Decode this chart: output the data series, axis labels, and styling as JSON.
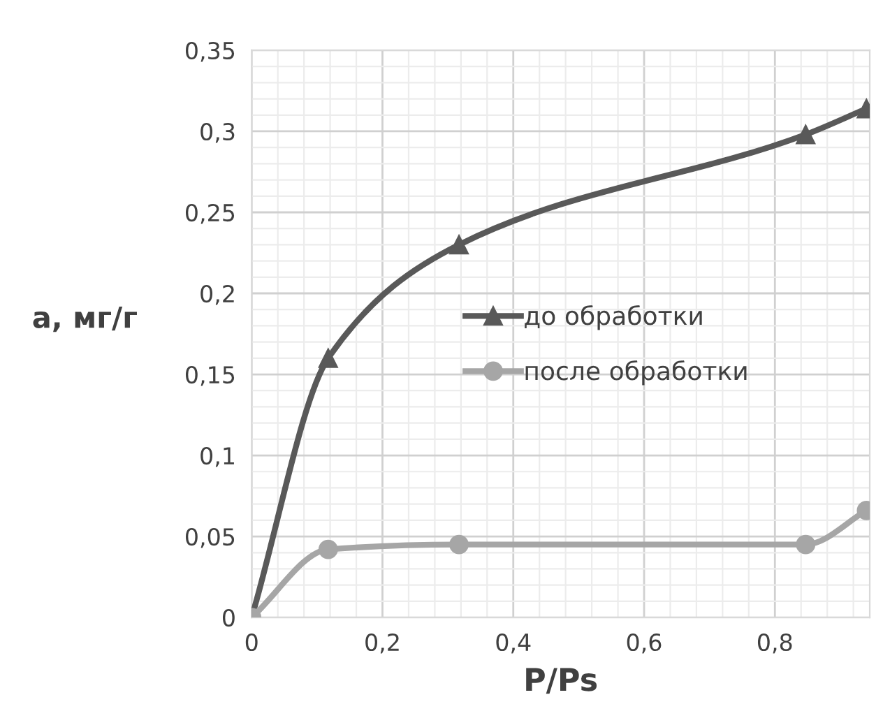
{
  "chart_data": {
    "type": "line",
    "xlabel": "P/Ps",
    "ylabel": "a, мг/г",
    "xlim": [
      0,
      0.945
    ],
    "ylim": [
      0,
      0.35
    ],
    "xticks": [
      0,
      {
        "value": 0.2,
        "label": "0,2"
      },
      {
        "value": 0.4,
        "label": "0,4"
      },
      {
        "value": 0.6,
        "label": "0,6"
      },
      {
        "value": 0.8,
        "label": "0,8"
      }
    ],
    "yticks": [
      0,
      {
        "value": 0.05,
        "label": "0,05"
      },
      {
        "value": 0.1,
        "label": "0,1"
      },
      {
        "value": 0.15,
        "label": "0,15"
      },
      {
        "value": 0.2,
        "label": "0,2"
      },
      {
        "value": 0.25,
        "label": "0,25"
      },
      {
        "value": 0.3,
        "label": "0,3"
      },
      {
        "value": 0.35,
        "label": "0,35"
      }
    ],
    "x": [
      0,
      0.117,
      0.317,
      0.847,
      0.94
    ],
    "series": [
      {
        "name": "до обработки",
        "color": "#595959",
        "marker": "triangle",
        "values": [
          0,
          0.16,
          0.23,
          0.298,
          0.314
        ]
      },
      {
        "name": "после обработки",
        "color": "#a6a6a6",
        "marker": "circle",
        "values": [
          0,
          0.042,
          0.045,
          0.045,
          0.066
        ]
      }
    ],
    "grid": true,
    "legend": "center",
    "line_style": "solid"
  }
}
